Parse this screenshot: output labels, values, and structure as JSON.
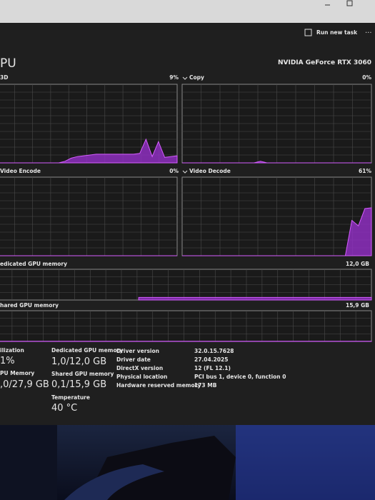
{
  "header": {
    "action": "Run new task"
  },
  "title": "PU",
  "device": "NVIDIA GeForce RTX 3060",
  "graphs": [
    {
      "label": "3D",
      "percent": "9%",
      "samples": [
        0,
        0,
        0,
        0,
        0,
        0,
        0,
        0,
        0,
        0,
        0,
        2,
        6,
        8,
        9,
        10,
        11,
        11,
        11,
        11,
        11,
        11,
        11,
        12,
        30,
        8,
        27,
        7,
        8,
        9
      ]
    },
    {
      "label": "Copy",
      "percent": "0%",
      "samples": [
        0,
        0,
        0,
        0,
        0,
        0,
        0,
        0,
        0,
        0,
        0,
        0,
        2,
        0,
        0,
        0,
        0,
        0,
        0,
        0,
        0,
        0,
        0,
        0,
        0,
        0,
        0,
        0,
        0,
        0
      ]
    },
    {
      "label": "Video Encode",
      "percent": "0%",
      "samples": [
        0,
        0,
        0,
        0,
        0,
        0,
        0,
        0,
        0,
        0,
        0,
        0,
        0,
        0,
        0,
        0,
        0,
        0,
        0,
        0,
        0,
        0,
        0,
        0,
        0,
        0,
        0,
        0,
        0,
        0
      ]
    },
    {
      "label": "Video Decode",
      "percent": "61%",
      "samples": [
        0,
        0,
        0,
        0,
        0,
        0,
        0,
        0,
        0,
        0,
        0,
        0,
        0,
        0,
        0,
        0,
        0,
        0,
        0,
        0,
        0,
        0,
        0,
        0,
        0,
        0,
        45,
        38,
        60,
        61
      ]
    },
    {
      "label": "edicated GPU memory",
      "capacity": "12,0 GB",
      "samples": [
        null,
        null,
        null,
        null,
        null,
        null,
        null,
        null,
        null,
        null,
        null,
        8.3,
        8.3,
        8.3,
        8.3,
        8.3,
        8.3,
        8.3,
        8.3,
        8.3,
        8.3,
        8.3,
        8.3,
        8.3,
        8.3,
        8.3,
        8.3,
        8.3,
        8.3,
        8.3
      ]
    },
    {
      "label": "hared GPU memory",
      "capacity": "15,9 GB",
      "samples": [
        0.6,
        0.6,
        0.6,
        0.6,
        0.6,
        0.6,
        0.6,
        0.6,
        0.6,
        0.6,
        0.6,
        0.6,
        0.6,
        0.6,
        0.6,
        0.6,
        0.6,
        0.6,
        0.6,
        0.6,
        0.6,
        0.6,
        0.6,
        0.6,
        0.6,
        0.6,
        0.6,
        0.6,
        0.6,
        0.6
      ]
    }
  ],
  "stats": [
    {
      "label": "ilization",
      "value": "1%"
    },
    {
      "label": "PU Memory",
      "value": ",0/27,9 GB"
    },
    {
      "label": "Dedicated GPU memory",
      "value": "1,0/12,0 GB"
    },
    {
      "label": "Shared GPU memory",
      "value": "0,1/15,9 GB"
    },
    {
      "label": "Temperature",
      "value": "40 °C"
    }
  ],
  "details": [
    [
      "Driver version",
      "32.0.15.7628"
    ],
    [
      "Driver date",
      "27.04.2025"
    ],
    [
      "DirectX version",
      "12 (FL 12.1)"
    ],
    [
      "Physical location",
      "PCI bus 1, device 0, function 0"
    ],
    [
      "Hardware reserved memory",
      "173 MB"
    ]
  ]
}
